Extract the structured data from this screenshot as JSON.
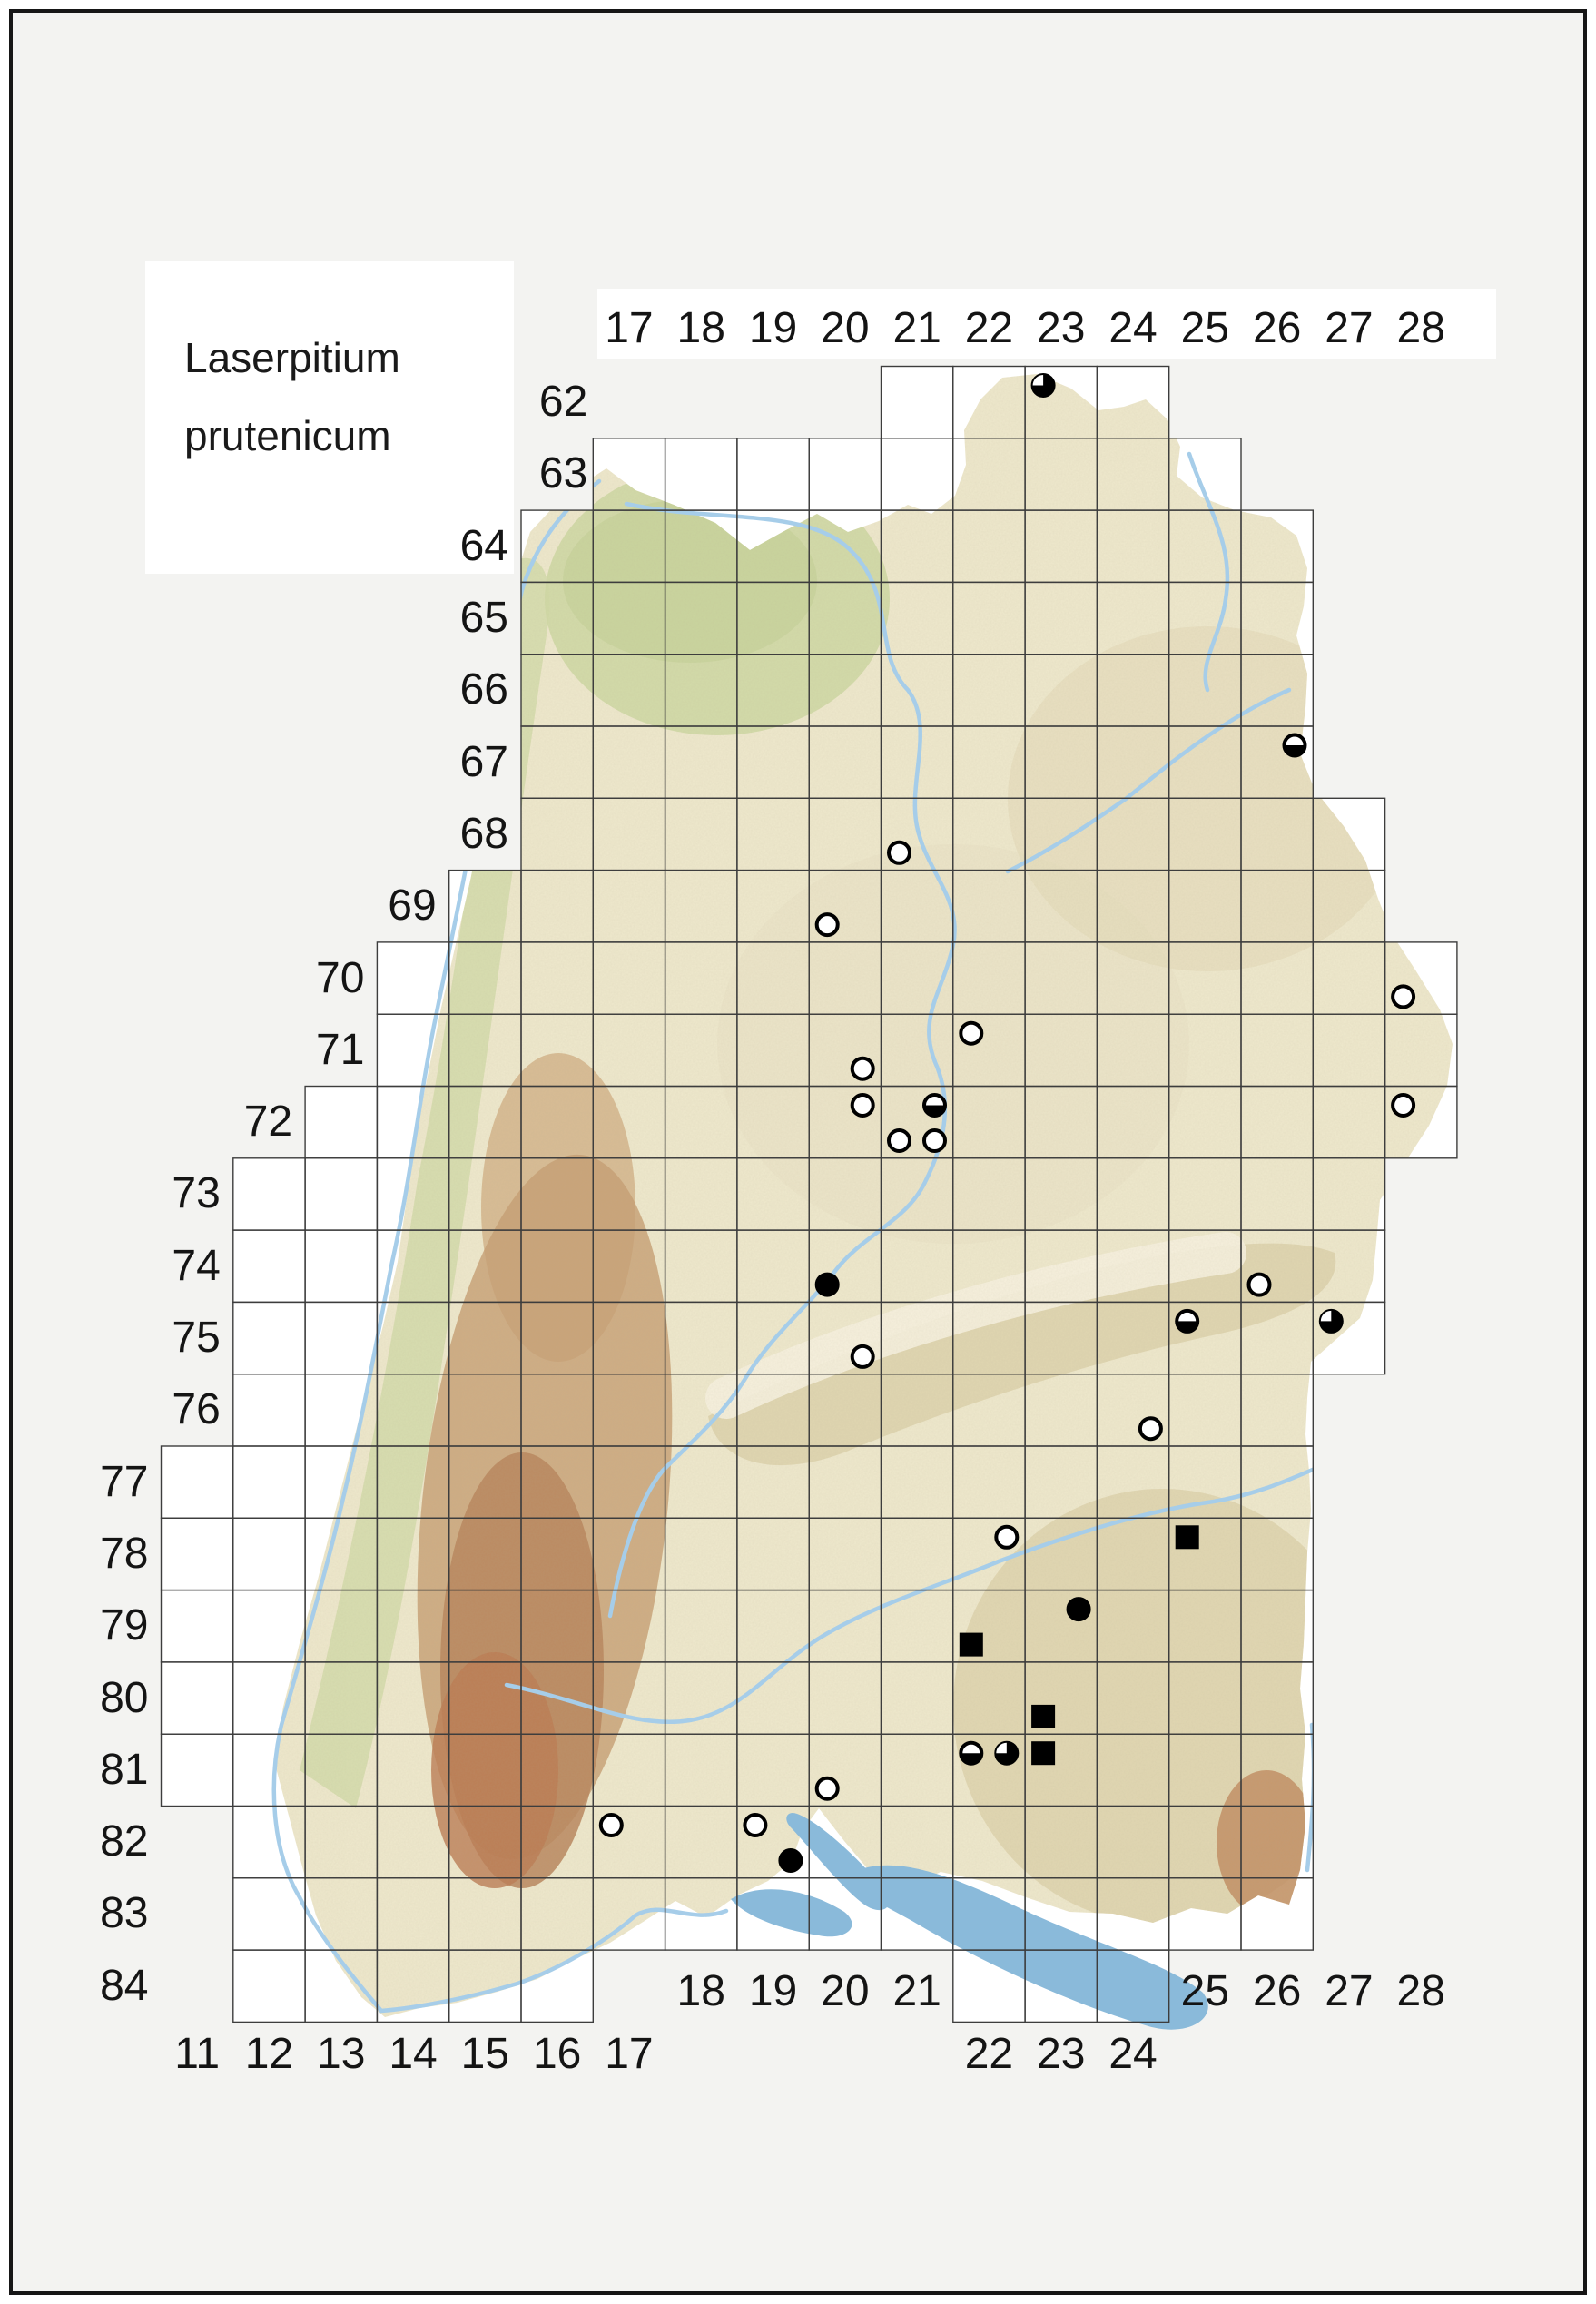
{
  "title": {
    "line1": "Laserpitium",
    "line2": "prutenicum"
  },
  "axis": {
    "top_cols": [
      17,
      18,
      19,
      20,
      21,
      22,
      23,
      24,
      25,
      26,
      27,
      28
    ],
    "left_rows": [
      62,
      63,
      64,
      65,
      66,
      67,
      68,
      69,
      70,
      71,
      72,
      73,
      74,
      75,
      76,
      77,
      78,
      79,
      80,
      81,
      82,
      83,
      84
    ],
    "bottom_upper_cols": [
      18,
      19,
      20,
      21,
      25,
      26,
      27,
      28
    ],
    "bottom_lower_cols": [
      11,
      12,
      13,
      14,
      15,
      16,
      17,
      22,
      23,
      24
    ]
  },
  "grid_rows": [
    {
      "row": 62,
      "segments": [
        [
          21,
          24
        ]
      ]
    },
    {
      "row": 63,
      "segments": [
        [
          17,
          25
        ]
      ]
    },
    {
      "row": 64,
      "segments": [
        [
          16,
          26
        ]
      ]
    },
    {
      "row": 65,
      "segments": [
        [
          16,
          26
        ]
      ]
    },
    {
      "row": 66,
      "segments": [
        [
          16,
          26
        ]
      ]
    },
    {
      "row": 67,
      "segments": [
        [
          16,
          26
        ]
      ]
    },
    {
      "row": 68,
      "segments": [
        [
          16,
          27
        ]
      ]
    },
    {
      "row": 69,
      "segments": [
        [
          15,
          27
        ]
      ]
    },
    {
      "row": 70,
      "segments": [
        [
          14,
          28
        ]
      ]
    },
    {
      "row": 71,
      "segments": [
        [
          14,
          28
        ]
      ]
    },
    {
      "row": 72,
      "segments": [
        [
          13,
          28
        ]
      ]
    },
    {
      "row": 73,
      "segments": [
        [
          12,
          27
        ]
      ]
    },
    {
      "row": 74,
      "segments": [
        [
          12,
          27
        ]
      ]
    },
    {
      "row": 75,
      "segments": [
        [
          12,
          27
        ]
      ]
    },
    {
      "row": 76,
      "segments": [
        [
          12,
          26
        ]
      ]
    },
    {
      "row": 77,
      "segments": [
        [
          11,
          26
        ]
      ]
    },
    {
      "row": 78,
      "segments": [
        [
          11,
          26
        ]
      ]
    },
    {
      "row": 79,
      "segments": [
        [
          11,
          26
        ]
      ]
    },
    {
      "row": 80,
      "segments": [
        [
          11,
          26
        ]
      ]
    },
    {
      "row": 81,
      "segments": [
        [
          11,
          26
        ]
      ]
    },
    {
      "row": 82,
      "segments": [
        [
          12,
          26
        ]
      ]
    },
    {
      "row": 83,
      "segments": [
        [
          12,
          26
        ]
      ]
    },
    {
      "row": 84,
      "segments": [
        [
          12,
          16
        ],
        [
          22,
          24
        ]
      ]
    }
  ],
  "markers": [
    {
      "col": 23,
      "row": 62,
      "quad": "NW",
      "type": "three_quarter_circle"
    },
    {
      "col": 26,
      "row": 67,
      "quad": "NE",
      "type": "half_filled_circle"
    },
    {
      "col": 21,
      "row": 68,
      "quad": "SW",
      "type": "open_circle"
    },
    {
      "col": 20,
      "row": 69,
      "quad": "SW",
      "type": "open_circle"
    },
    {
      "col": 28,
      "row": 70,
      "quad": "SW",
      "type": "open_circle"
    },
    {
      "col": 22,
      "row": 71,
      "quad": "NW",
      "type": "open_circle"
    },
    {
      "col": 20,
      "row": 71,
      "quad": "SE",
      "type": "open_circle"
    },
    {
      "col": 20,
      "row": 72,
      "quad": "NE",
      "type": "open_circle"
    },
    {
      "col": 21,
      "row": 72,
      "quad": "NE",
      "type": "half_filled_circle"
    },
    {
      "col": 28,
      "row": 72,
      "quad": "NW",
      "type": "open_circle"
    },
    {
      "col": 21,
      "row": 72,
      "quad": "SW",
      "type": "open_circle"
    },
    {
      "col": 21,
      "row": 72,
      "quad": "SE",
      "type": "open_circle"
    },
    {
      "col": 20,
      "row": 74,
      "quad": "SW",
      "type": "filled_circle"
    },
    {
      "col": 26,
      "row": 74,
      "quad": "SW",
      "type": "open_circle"
    },
    {
      "col": 25,
      "row": 75,
      "quad": "NW",
      "type": "half_filled_circle"
    },
    {
      "col": 27,
      "row": 75,
      "quad": "NW",
      "type": "three_quarter_circle"
    },
    {
      "col": 20,
      "row": 75,
      "quad": "SE",
      "type": "open_circle"
    },
    {
      "col": 24,
      "row": 76,
      "quad": "SE",
      "type": "open_circle"
    },
    {
      "col": 22,
      "row": 78,
      "quad": "NE",
      "type": "open_circle"
    },
    {
      "col": 25,
      "row": 78,
      "quad": "NW",
      "type": "filled_square"
    },
    {
      "col": 23,
      "row": 79,
      "quad": "NE",
      "type": "filled_circle"
    },
    {
      "col": 22,
      "row": 79,
      "quad": "SW",
      "type": "filled_square"
    },
    {
      "col": 23,
      "row": 80,
      "quad": "SW",
      "type": "filled_square"
    },
    {
      "col": 22,
      "row": 81,
      "quad": "NW",
      "type": "half_filled_circle"
    },
    {
      "col": 22,
      "row": 81,
      "quad": "NE",
      "type": "three_quarter_circle"
    },
    {
      "col": 23,
      "row": 81,
      "quad": "NW",
      "type": "filled_square"
    },
    {
      "col": 20,
      "row": 81,
      "quad": "SW",
      "type": "open_circle"
    },
    {
      "col": 17,
      "row": 82,
      "quad": "NW",
      "type": "open_circle"
    },
    {
      "col": 19,
      "row": 82,
      "quad": "NW",
      "type": "open_circle"
    },
    {
      "col": 19,
      "row": 82,
      "quad": "SE",
      "type": "filled_circle"
    }
  ],
  "colors": {
    "page_bg": "#ffffff",
    "frame": "#161616",
    "map_bg": "#f3f3f1",
    "cell_white": "#ffffff",
    "grid_line": "#3d3d3d",
    "terrain_base": "#efe9cd",
    "terrain_green": "#ccd7a0",
    "terrain_tan": "#ddd2ab",
    "forest_brown": "#c79d72",
    "forest_dark": "#b9855c",
    "lake_blue": "#8abada",
    "river_blue": "#a6cde9",
    "marker_black": "#000000",
    "text": "#141414"
  }
}
